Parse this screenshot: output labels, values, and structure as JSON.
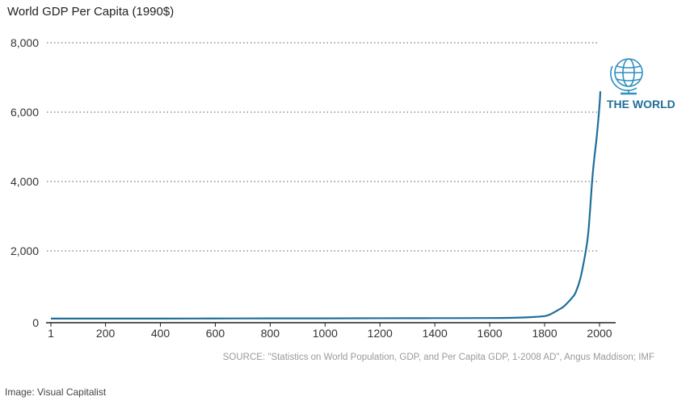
{
  "chart_data": {
    "type": "line",
    "title": "World GDP Per Capita (1990$)",
    "xlabel": "",
    "ylabel": "",
    "x_ticks": [
      "1",
      "200",
      "400",
      "600",
      "800",
      "1000",
      "1200",
      "1400",
      "1600",
      "1800",
      "2000"
    ],
    "y_ticks": [
      "0",
      "2,000",
      "4,000",
      "6,000",
      "8,000"
    ],
    "xlim": [
      1,
      2000
    ],
    "ylim": [
      0,
      8000
    ],
    "grid": "horizontal dotted",
    "series": [
      {
        "name": "",
        "label": "THE WORLD",
        "color": "#1f6e99",
        "icon": "globe-icon",
        "x": [
          1,
          200,
          400,
          600,
          800,
          1000,
          1200,
          1400,
          1600,
          1700,
          1750,
          1800,
          1820,
          1850,
          1870,
          1900,
          1913,
          1930,
          1950,
          1960,
          1973,
          1980,
          1990,
          2000,
          2003
        ],
        "y": [
          50,
          50,
          50,
          52,
          55,
          55,
          60,
          62,
          65,
          75,
          90,
          120,
          170,
          300,
          400,
          650,
          800,
          1200,
          2000,
          2600,
          4000,
          4600,
          5300,
          6200,
          6600
        ]
      }
    ]
  },
  "source": "SOURCE: \"Statistics on World Population, GDP, and Per Capita GDP, 1-2008 AD\", Angus Maddison; IMF",
  "credit": "Image: Visual Capitalist"
}
